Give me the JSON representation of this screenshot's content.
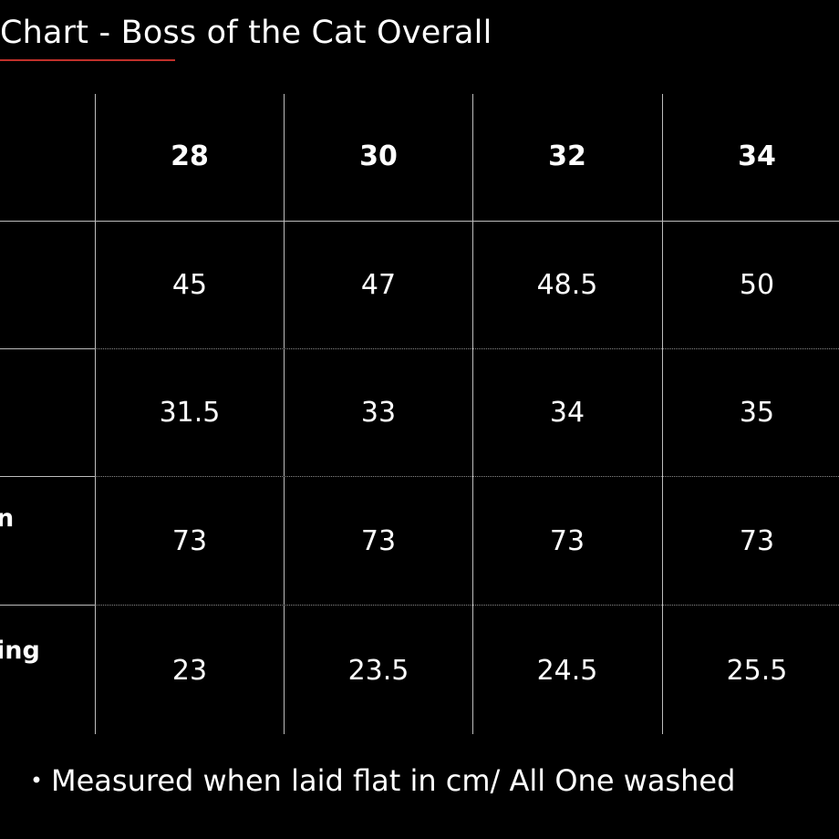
{
  "title": "Chart - Boss of the Cat Overall",
  "accent_color": "#c0302a",
  "table": {
    "columns": [
      "28",
      "30",
      "32",
      "34"
    ],
    "rows": [
      {
        "label": "",
        "values": [
          "45",
          "47",
          "48.5",
          "50"
        ]
      },
      {
        "label": "",
        "values": [
          "31.5",
          "33",
          "34",
          "35"
        ]
      },
      {
        "label": "n",
        "values": [
          "73",
          "73",
          "73",
          "73"
        ]
      },
      {
        "label": "ing",
        "values": [
          "23",
          "23.5",
          "24.5",
          "25.5"
        ]
      }
    ]
  },
  "note": "・Measured when laid flat in cm/ All One washed"
}
